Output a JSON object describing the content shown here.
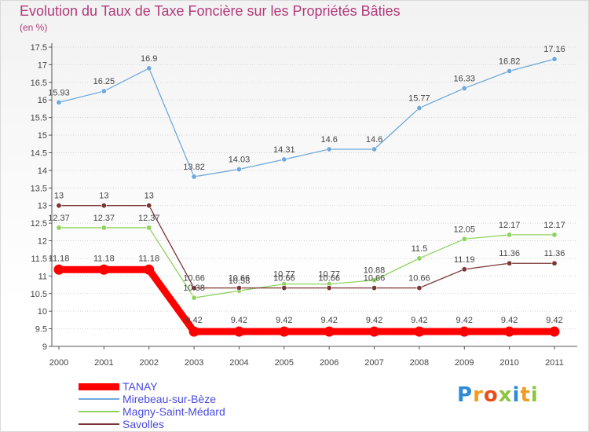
{
  "chart_data": {
    "type": "line",
    "title": "Evolution du Taux de Taxe Foncière sur les Propriétés Bâties",
    "subtitle": "(en %)",
    "xlabel": "",
    "ylabel": "",
    "ylim": [
      9,
      17.5
    ],
    "grid": "horizontal, dotted",
    "yticks": [
      "9",
      "9.5",
      "10",
      "10.5",
      "11",
      "11.5",
      "12",
      "12.5",
      "13",
      "13.5",
      "14",
      "14.5",
      "15",
      "15.5",
      "16",
      "16.5",
      "17",
      "17.5"
    ],
    "categories": [
      "2000",
      "2001",
      "2002",
      "2003",
      "2004",
      "2005",
      "2006",
      "2007",
      "2008",
      "2009",
      "2010",
      "2011"
    ],
    "series": [
      {
        "name": "TANAY",
        "color": "#ff0000",
        "values": [
          11.18,
          11.18,
          11.18,
          9.42,
          9.42,
          9.42,
          9.42,
          9.42,
          9.42,
          9.42,
          9.42,
          9.42
        ],
        "labels": [
          "11.18",
          "11.18",
          "11.18",
          "9.42",
          "9.42",
          "9.42",
          "9.42",
          "9.42",
          "9.42",
          "9.42",
          "9.42",
          "9.42"
        ]
      },
      {
        "name": "Mirebeau-sur-Bèze",
        "color": "#6fa8dc",
        "values": [
          15.93,
          16.25,
          16.9,
          13.82,
          14.03,
          14.31,
          14.6,
          14.6,
          15.77,
          16.33,
          16.82,
          17.16
        ],
        "labels": [
          "15.93",
          "16.25",
          "16.9",
          "13.82",
          "14.03",
          "14.31",
          "14.6",
          "14.6",
          "15.77",
          "16.33",
          "16.82",
          "17.16"
        ]
      },
      {
        "name": "Magny-Saint-Médard",
        "color": "#8fd35f",
        "values": [
          12.37,
          12.37,
          12.37,
          10.38,
          10.58,
          10.77,
          10.77,
          10.88,
          11.5,
          12.05,
          12.17,
          12.17
        ],
        "labels": [
          "12.37",
          "12.37",
          "12.37",
          "10.38",
          "10.58",
          "10.77",
          "10.77",
          "10.88",
          "11.5",
          "12.05",
          "12.17",
          "12.17"
        ]
      },
      {
        "name": "Savolles",
        "color": "#7b3535",
        "values": [
          13,
          13,
          13,
          10.66,
          10.66,
          10.66,
          10.66,
          10.66,
          10.66,
          11.19,
          11.36,
          11.36
        ],
        "labels": [
          "13",
          "13",
          "13",
          "10.66",
          "10.66",
          "10.66",
          "10.66",
          "10.66",
          "10.66",
          "11.19",
          "11.36",
          "11.36"
        ]
      }
    ]
  },
  "legend": {
    "items": [
      {
        "label": "TANAY",
        "color": "#ff0000"
      },
      {
        "label": "Mirebeau-sur-Bèze",
        "color": "#6fa8dc"
      },
      {
        "label": "Magny-Saint-Médard",
        "color": "#8fd35f"
      },
      {
        "label": "Savolles",
        "color": "#7b3535"
      }
    ],
    "text_color": "#4a4ae0"
  },
  "logo": {
    "letters": [
      "P",
      "r",
      "o",
      "x",
      "i",
      "t",
      "i"
    ],
    "colors": [
      "#2e8bd6",
      "#f29b1e",
      "#e94e1b",
      "#8cc63f",
      "#2e8bd6",
      "#f29b1e",
      "#8cc63f"
    ]
  }
}
